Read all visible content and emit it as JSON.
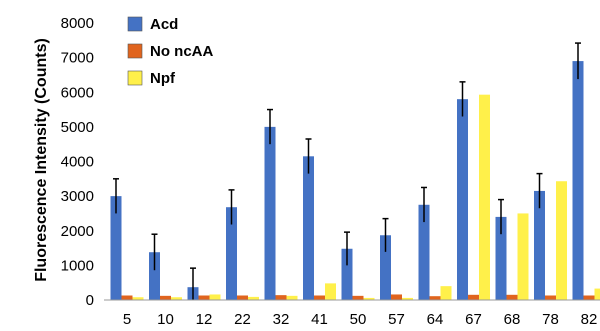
{
  "chart_data": {
    "type": "bar",
    "title": "",
    "xlabel": "",
    "ylabel": "Fluorescence Intensity (Counts)",
    "ylim": [
      0,
      8000
    ],
    "yticks": [
      0,
      1000,
      2000,
      3000,
      4000,
      5000,
      6000,
      7000,
      8000
    ],
    "categories": [
      "5",
      "10",
      "12",
      "22",
      "32",
      "41",
      "50",
      "57",
      "64",
      "67",
      "68",
      "78",
      "82"
    ],
    "legend_position": "top-left",
    "series": [
      {
        "name": "Acd",
        "color": "#4472C4",
        "values": [
          3000,
          1380,
          370,
          2680,
          5000,
          4150,
          1480,
          1870,
          2750,
          5800,
          2400,
          3150,
          6900
        ],
        "errors": [
          500,
          520,
          550,
          500,
          500,
          500,
          480,
          480,
          500,
          500,
          500,
          500,
          520
        ]
      },
      {
        "name": "No ncAA",
        "color": "#E0641E",
        "values": [
          130,
          120,
          130,
          130,
          140,
          130,
          120,
          160,
          110,
          150,
          150,
          130,
          130
        ],
        "errors": []
      },
      {
        "name": "Npf",
        "color": "#FFF04A",
        "values": [
          80,
          80,
          160,
          90,
          120,
          480,
          60,
          60,
          400,
          5930,
          2500,
          3430,
          330
        ],
        "errors": []
      }
    ]
  }
}
